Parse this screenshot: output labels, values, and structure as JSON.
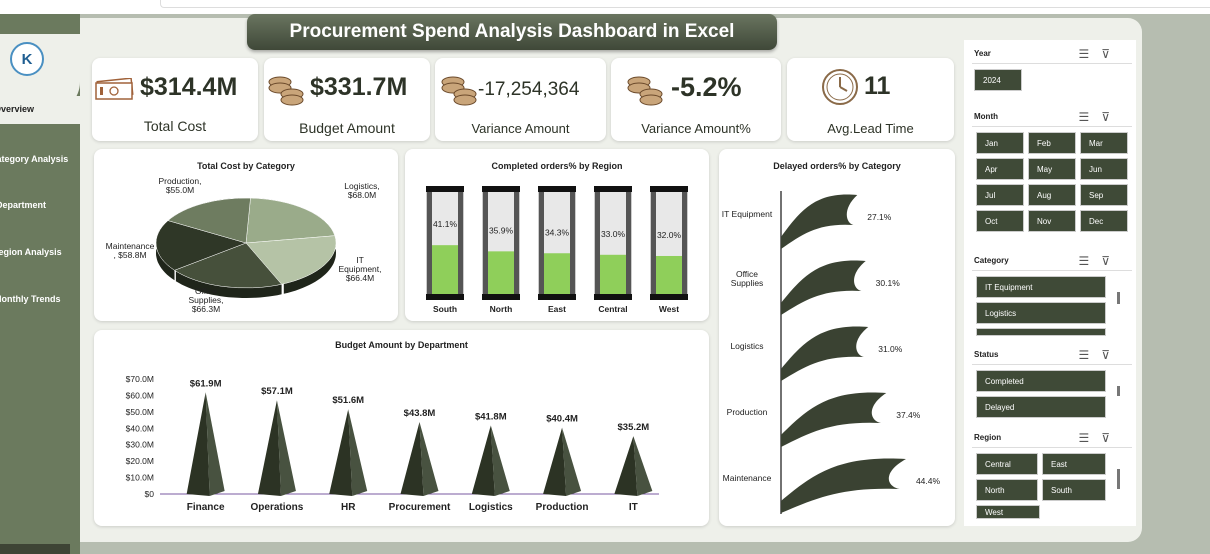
{
  "title": "Procurement Spend Analysis Dashboard in Excel",
  "logo_text": "K",
  "nav": [
    {
      "label": "Overview"
    },
    {
      "label": "Category Analysis"
    },
    {
      "label": "Department"
    },
    {
      "label": "Region Analysis"
    },
    {
      "label": "Monthly Trends"
    }
  ],
  "kpis": [
    {
      "value": "$314.4M",
      "label": "Total Cost",
      "icon": "money-bill-icon"
    },
    {
      "value": "$331.7M",
      "label": "Budget Amount",
      "icon": "coins-icon"
    },
    {
      "value": "-17,254,364",
      "label": "Variance Amount",
      "icon": "coins-icon"
    },
    {
      "value": "-5.2%",
      "label": "Variance Amount%",
      "icon": "coins-icon"
    },
    {
      "value": "11",
      "label": "Avg.Lead Time",
      "icon": "clock-icon"
    }
  ],
  "chart_data": [
    {
      "type": "pie",
      "title": "Total Cost by Category",
      "categories": [
        "Logistics",
        "IT Equipment",
        "Office Supplies",
        "Maintenance",
        "Production"
      ],
      "values": [
        68.0,
        66.4,
        66.3,
        58.8,
        55.0
      ],
      "labels": [
        "Logistics,\n$68.0M",
        "IT\nEquipment,\n$66.4M",
        "Office\nSupplies,\n$66.3M",
        "Maintenance\n, $58.8M",
        "Production,\n$55.0M"
      ],
      "colors": [
        "#9aab8a",
        "#b5c3a6",
        "#46503b",
        "#2f3727",
        "#6e7c60"
      ]
    },
    {
      "type": "bar",
      "title": "Completed orders% by Region",
      "categories": [
        "South",
        "North",
        "East",
        "Central",
        "West"
      ],
      "values": [
        41.1,
        35.9,
        34.3,
        33.0,
        32.0
      ],
      "data_labels": [
        "41.1%",
        "35.9%",
        "34.3%",
        "33.0%",
        "32.0%"
      ],
      "ylim": [
        0,
        100
      ]
    },
    {
      "type": "bar",
      "title": "Delayed orders% by Category",
      "categories": [
        "IT Equipment",
        "Office Supplies",
        "Logistics",
        "Production",
        "Maintenance"
      ],
      "values": [
        27.1,
        30.1,
        31.0,
        37.4,
        44.4
      ],
      "data_labels": [
        "27.1%",
        "30.1%",
        "31.0%",
        "37.4%",
        "44.4%"
      ]
    },
    {
      "type": "bar",
      "title": "Budget Amount by Department",
      "categories": [
        "Finance",
        "Operations",
        "HR",
        "Procurement",
        "Logistics",
        "Production",
        "IT"
      ],
      "values": [
        61.9,
        57.1,
        51.6,
        43.8,
        41.8,
        40.4,
        35.2
      ],
      "data_labels": [
        "$61.9M",
        "$57.1M",
        "$51.6M",
        "$43.8M",
        "$41.8M",
        "$40.4M",
        "$35.2M"
      ],
      "yticks": [
        "$70.0M",
        "$60.0M",
        "$50.0M",
        "$40.0M",
        "$30.0M",
        "$20.0M",
        "$10.0M",
        "$0"
      ],
      "ylim": [
        0,
        70
      ]
    }
  ],
  "slicers": {
    "year": {
      "title": "Year",
      "items": [
        "2024"
      ]
    },
    "month": {
      "title": "Month",
      "items": [
        "Jan",
        "Feb",
        "Mar",
        "Apr",
        "May",
        "Jun",
        "Jul",
        "Aug",
        "Sep",
        "Oct",
        "Nov",
        "Dec"
      ]
    },
    "category": {
      "title": "Category",
      "items": [
        "IT Equipment",
        "Logistics"
      ]
    },
    "status": {
      "title": "Status",
      "items": [
        "Completed",
        "Delayed"
      ]
    },
    "region": {
      "title": "Region",
      "items": [
        "Central",
        "East",
        "North",
        "South",
        "West"
      ]
    }
  }
}
